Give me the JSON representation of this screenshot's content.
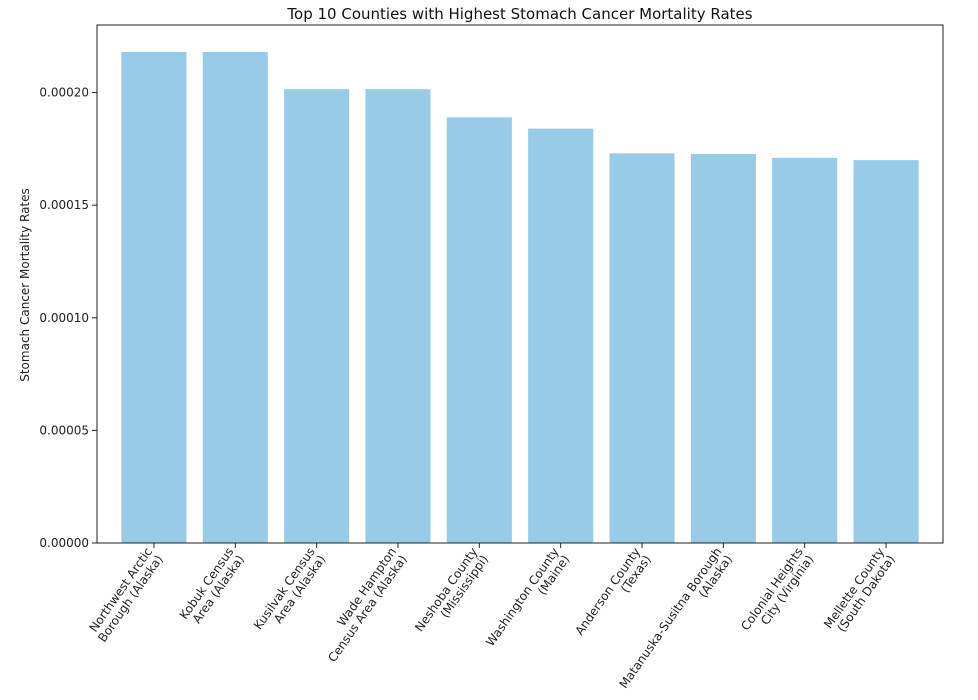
{
  "colors": {
    "bar": "#97cbe7",
    "axis": "#222222"
  },
  "chart_data": {
    "type": "bar",
    "title": "Top 10 Counties with Highest Stomach Cancer Mortality Rates",
    "xlabel": "",
    "ylabel": "Stomach Cancer Mortality Rates",
    "ylim": [
      0,
      0.00023
    ],
    "yticks": [
      "0.00000",
      "0.00005",
      "0.00010",
      "0.00015",
      "0.00020"
    ],
    "grid": false,
    "legend": false,
    "categories": [
      "Northwest Arctic Borough (Alaska)",
      "Kobuk Census Area (Alaska)",
      "Kusilvak Census Area (Alaska)",
      "Wade Hampton Census Area (Alaska)",
      "Neshoba County (Mississippi)",
      "Washington County (Maine)",
      "Anderson County (Texas)",
      "Matanuska-Susitna Borough (Alaska)",
      "Colonial Heights City (Virginia)",
      "Mellette County (South Dakota)"
    ],
    "category_label_lines": [
      [
        "Northwest Arctic",
        "Borough (Alaska)"
      ],
      [
        "Kobuk Census",
        "Area (Alaska)"
      ],
      [
        "Kusilvak Census",
        "Area (Alaska)"
      ],
      [
        "Wade Hampton",
        "Census Area (Alaska)"
      ],
      [
        "Neshoba County",
        "(Mississippi)"
      ],
      [
        "Washington County",
        "(Maine)"
      ],
      [
        "Anderson County",
        "(Texas)"
      ],
      [
        "Matanuska-Susitna Borough",
        "(Alaska)"
      ],
      [
        "Colonial Heights",
        "City (Virginia)"
      ],
      [
        "Mellette County",
        "(South Dakota)"
      ]
    ],
    "values": [
      0.000218,
      0.000218,
      0.0002015,
      0.0002015,
      0.000189,
      0.000184,
      0.000173,
      0.0001727,
      0.000171,
      0.00017
    ]
  }
}
